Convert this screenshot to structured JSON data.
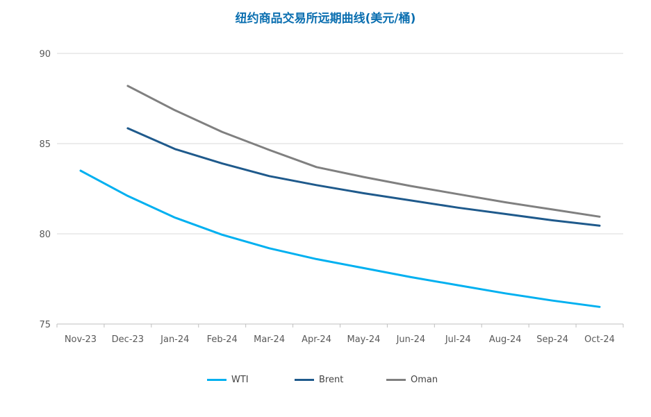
{
  "chart_data": {
    "type": "line",
    "title": "纽约商品交易所远期曲线(美元/桶)",
    "xlabel": "",
    "ylabel": "",
    "categories": [
      "Nov-23",
      "Dec-23",
      "Jan-24",
      "Feb-24",
      "Mar-24",
      "Apr-24",
      "May-24",
      "Jun-24",
      "Jul-24",
      "Aug-24",
      "Sep-24",
      "Oct-24"
    ],
    "ylim": [
      75,
      90
    ],
    "yticks": [
      75,
      80,
      85,
      90
    ],
    "grid": true,
    "legend_position": "bottom",
    "series": [
      {
        "name": "WTI",
        "color": "#00b0f0",
        "values": [
          83.5,
          82.1,
          80.9,
          79.95,
          79.2,
          78.6,
          78.1,
          77.6,
          77.15,
          76.7,
          76.3,
          75.95
        ]
      },
      {
        "name": "Brent",
        "color": "#1f5a8c",
        "values": [
          null,
          85.85,
          84.7,
          83.9,
          83.2,
          82.7,
          82.25,
          81.85,
          81.45,
          81.1,
          80.75,
          80.45
        ]
      },
      {
        "name": "Oman",
        "color": "#808080",
        "values": [
          null,
          88.2,
          86.85,
          85.65,
          84.65,
          83.7,
          83.15,
          82.65,
          82.2,
          81.75,
          81.35,
          80.95
        ]
      }
    ]
  }
}
